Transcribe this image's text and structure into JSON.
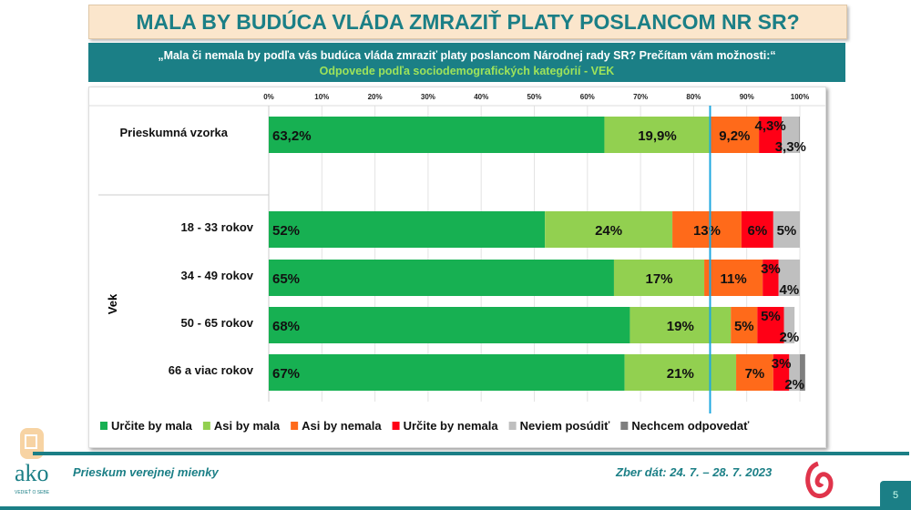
{
  "title": "MALA BY BUDÚCA VLÁDA ZMRAZIŤ PLATY POSLANCOM NR SR?",
  "subtitle": "„Mala či nemala by podľa vás budúca vláda zmraziť platy poslancom Národnej rady SR? Prečítam vám možnosti:“",
  "subtitle2": "Odpovede podľa sociodemografických kategórií - VEK",
  "footer": {
    "left": "Prieskum verejnej mienky",
    "right": "Zber dát: 24. 7. – 28. 7. 2023",
    "page": "5",
    "logo": "ako",
    "logo_tagline": "VEDIEŤ O SEBE"
  },
  "chart_data": {
    "type": "bar",
    "orientation": "horizontal-stacked-100",
    "xlim": [
      0,
      100
    ],
    "ticks": [
      "0%",
      "10%",
      "20%",
      "30%",
      "40%",
      "50%",
      "60%",
      "70%",
      "80%",
      "90%",
      "100%"
    ],
    "group_label": "Vek",
    "categories": [
      "Prieskumná vzorka",
      "18 - 33 rokov",
      "34 - 49 rokov",
      "50 - 65 rokov",
      "66 a viac rokov"
    ],
    "series": [
      {
        "name": "Určite by mala",
        "color": "#17b052",
        "values": [
          63.2,
          52,
          65,
          68,
          67
        ],
        "labels": [
          "63,2%",
          "52%",
          "65%",
          "68%",
          "67%"
        ]
      },
      {
        "name": "Asi by mala",
        "color": "#92d050",
        "values": [
          19.9,
          24,
          17,
          19,
          21
        ],
        "labels": [
          "19,9%",
          "24%",
          "17%",
          "19%",
          "21%"
        ]
      },
      {
        "name": "Asi by nemala",
        "color": "#ff6a1a",
        "values": [
          9.2,
          13,
          11,
          5,
          7
        ],
        "labels": [
          "9,2%",
          "13%",
          "11%",
          "5%",
          "7%"
        ]
      },
      {
        "name": "Určite by nemala",
        "color": "#ff0016",
        "values": [
          4.3,
          6,
          3,
          5,
          3
        ],
        "labels": [
          "4,3%",
          "6%",
          "3%",
          "5%",
          "3%"
        ]
      },
      {
        "name": "Neviem posúdiť",
        "color": "#bfbfbf",
        "values": [
          3.3,
          5,
          4,
          2,
          2
        ],
        "labels": [
          "3,3%",
          "5%",
          "4%",
          "2%",
          "2%"
        ]
      },
      {
        "name": "Nechcem odpovedať",
        "color": "#7f7f7f",
        "values": [
          0.1,
          0,
          0,
          0,
          1
        ],
        "labels": [
          "",
          "",
          "",
          "",
          ""
        ]
      }
    ],
    "reference_line": {
      "value": 83.1,
      "color": "#1ea8e0"
    },
    "legend": "bottom",
    "grid": true
  }
}
